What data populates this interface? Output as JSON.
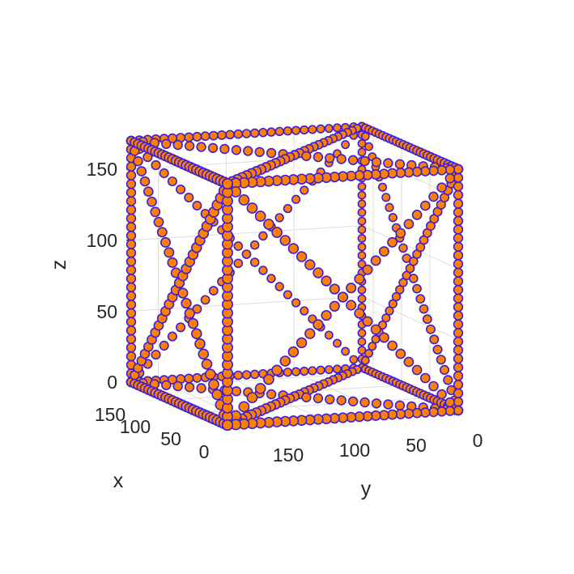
{
  "chart_data": {
    "type": "scatter",
    "title": "",
    "xlabel": "x",
    "ylabel": "y",
    "zlabel": "z",
    "xlim": [
      0,
      170
    ],
    "ylim": [
      0,
      170
    ],
    "zlim": [
      0,
      170
    ],
    "x_ticks": [
      "0",
      "50",
      "100",
      "150"
    ],
    "y_ticks": [
      "0",
      "50",
      "100",
      "150"
    ],
    "z_ticks": [
      "0",
      "50",
      "100",
      "150"
    ],
    "grid": true,
    "marker_fill_color": "#ff8000",
    "marker_edge_color": "#3a1fd6",
    "structure": "cubic lattice cell: 12 cube edges plus diagonal braces on every face, each strut drawn as a dense row of spheres",
    "nodes": [
      [
        0,
        0,
        0
      ],
      [
        170,
        0,
        0
      ],
      [
        0,
        170,
        0
      ],
      [
        170,
        170,
        0
      ],
      [
        0,
        0,
        170
      ],
      [
        170,
        0,
        170
      ],
      [
        0,
        170,
        170
      ],
      [
        170,
        170,
        170
      ]
    ],
    "struts": [
      [
        0,
        1
      ],
      [
        2,
        3
      ],
      [
        4,
        5
      ],
      [
        6,
        7
      ],
      [
        0,
        2
      ],
      [
        1,
        3
      ],
      [
        4,
        6
      ],
      [
        5,
        7
      ],
      [
        0,
        4
      ],
      [
        1,
        5
      ],
      [
        2,
        6
      ],
      [
        3,
        7
      ],
      [
        0,
        5
      ],
      [
        1,
        4
      ],
      [
        2,
        7
      ],
      [
        3,
        6
      ],
      [
        0,
        6
      ],
      [
        2,
        4
      ],
      [
        1,
        7
      ],
      [
        3,
        5
      ],
      [
        0,
        3
      ],
      [
        1,
        2
      ],
      [
        4,
        7
      ],
      [
        5,
        6
      ]
    ],
    "points_per_strut": 28
  }
}
